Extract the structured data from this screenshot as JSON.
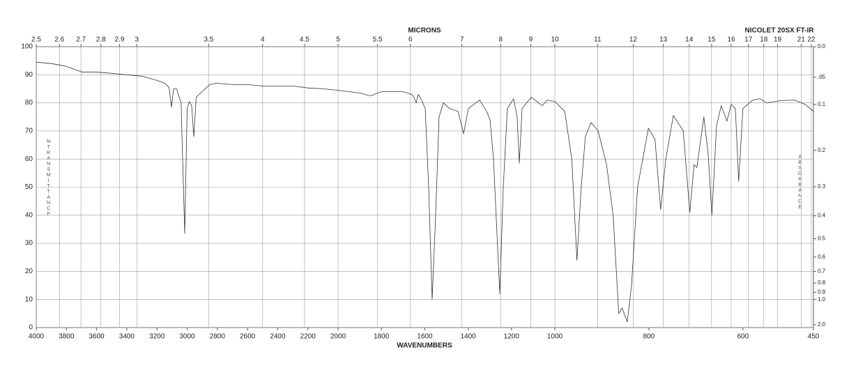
{
  "chart_data": {
    "type": "line",
    "title": "NICOLET 20SX FT-IR",
    "x_label": "WAVENUMBERS",
    "x2_label": "MICRONS",
    "y_label": "%TRANSMITTANCE",
    "y2_label": "ABSORBANCE",
    "color": "#333333",
    "grid": true,
    "xlim": [
      4000,
      450
    ],
    "xticks": [
      4000,
      3800,
      3600,
      3400,
      3200,
      3000,
      2800,
      2600,
      2400,
      2200,
      2000,
      1800,
      1600,
      1400,
      1200,
      1000,
      800,
      600,
      450
    ],
    "x2ticks": [
      2.5,
      2.6,
      2.7,
      2.8,
      2.9,
      3,
      3.5,
      4,
      4.5,
      5,
      5.5,
      6,
      7,
      8,
      9,
      10,
      11,
      12,
      13,
      14,
      15,
      16,
      17,
      18,
      19,
      21,
      22
    ],
    "ylim": [
      0,
      100
    ],
    "yticks": [
      0,
      10,
      20,
      30,
      40,
      50,
      60,
      70,
      80,
      90,
      100
    ],
    "y2ticks": [
      {
        "value": 0,
        "label": "0.0"
      },
      {
        "value": 0.05,
        "label": ".05"
      },
      0.1,
      0.2,
      0.3,
      0.4,
      0.5,
      0.6,
      0.7,
      0.8,
      0.9,
      {
        "value": 1,
        "label": "1.0"
      },
      {
        "value": 2,
        "label": "2.0"
      }
    ],
    "x": [
      4000,
      3900,
      3800,
      3700,
      3600,
      3500,
      3400,
      3300,
      3200,
      3150,
      3120,
      3104,
      3090,
      3070,
      3040,
      3016,
      3000,
      2985,
      2970,
      2956,
      2940,
      2901,
      2850,
      2808,
      2700,
      2600,
      2500,
      2400,
      2300,
      2200,
      2100,
      2000,
      1950,
      1900,
      1850,
      1800,
      1750,
      1700,
      1660,
      1650,
      1640,
      1630,
      1615,
      1598,
      1582,
      1566,
      1550,
      1534,
      1514,
      1486,
      1447,
      1421,
      1399,
      1347,
      1315,
      1299,
      1283,
      1254,
      1238,
      1219,
      1190,
      1174,
      1164,
      1151,
      1109,
      1058,
      1035,
      1000,
      979,
      964,
      953,
      944,
      935,
      923,
      908,
      890,
      876,
      864,
      857,
      846,
      837,
      824,
      801,
      787,
      775,
      764,
      748,
      727,
      713,
      704,
      698,
      683,
      674,
      666,
      656,
      646,
      634,
      625,
      616,
      609,
      600,
      579,
      564,
      550,
      520,
      490,
      468,
      450
    ],
    "values": [
      94.5,
      94,
      93,
      91,
      91,
      90.5,
      90,
      89.5,
      88,
      87,
      85.5,
      78.5,
      85,
      85,
      80,
      33.5,
      78,
      80.5,
      79,
      68,
      82,
      84,
      86.5,
      87,
      86.5,
      86.5,
      86,
      86,
      86,
      85.3,
      85,
      84.5,
      84,
      83.5,
      82.5,
      84,
      84,
      84,
      83,
      82,
      80,
      83,
      81,
      78,
      50,
      10,
      40,
      75,
      80,
      78,
      77,
      69,
      78,
      81,
      77,
      74,
      60,
      12,
      50,
      78,
      81.5,
      75,
      58.5,
      78,
      82,
      79,
      81,
      80.5,
      77,
      60,
      24,
      50,
      68,
      73,
      70,
      58,
      40,
      5,
      7,
      2,
      15,
      50,
      71,
      67,
      42,
      60,
      75.5,
      70,
      41,
      58,
      57,
      75,
      62,
      40,
      72,
      79,
      73.5,
      79.5,
      78,
      52,
      78,
      81,
      81.5,
      80,
      80.8,
      81,
      79.5,
      77
    ]
  }
}
